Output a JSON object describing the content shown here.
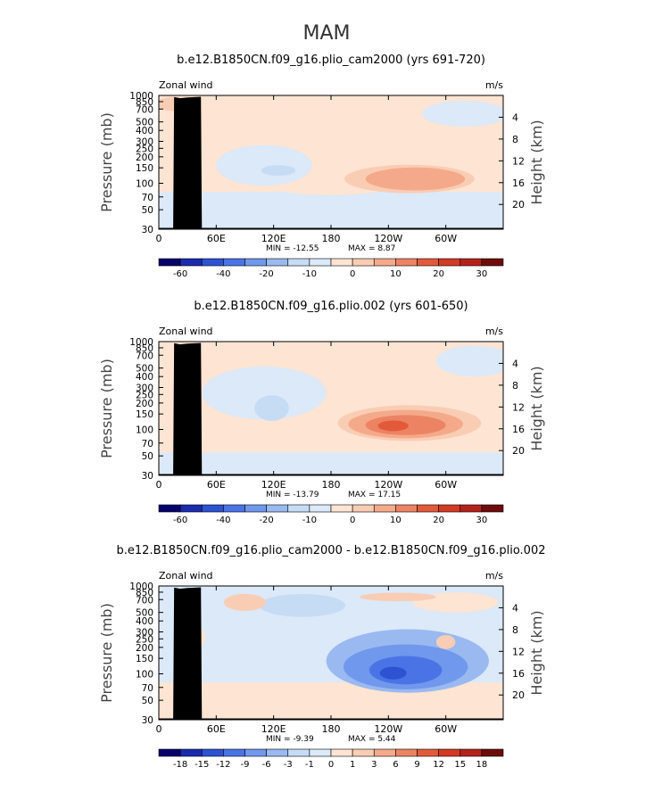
{
  "figure": {
    "title": "MAM",
    "lon_ticks": [
      "0",
      "60E",
      "120E",
      "180",
      "120W",
      "60W"
    ],
    "pressure_ticks": [
      "30",
      "50",
      "70",
      "100",
      "150",
      "200",
      "250",
      "300",
      "400",
      "500",
      "700",
      "850",
      "1000"
    ],
    "height_ticks": [
      "20",
      "16",
      "12",
      "8",
      "4"
    ],
    "ylabel_left": "Pressure (mb)",
    "ylabel_right": "Height (km)",
    "colors": {
      "blue_7": "#08006b",
      "blue_6": "#1a2bb0",
      "blue_5": "#2d52d2",
      "blue_4": "#4a74e6",
      "blue_3": "#7098ec",
      "blue_2": "#9ab9f0",
      "blue_1": "#c6dcf5",
      "blue_0": "#dbe9f8",
      "red_0": "#fde4d3",
      "red_1": "#f9cdb4",
      "red_2": "#f4aa8a",
      "red_3": "#ec8463",
      "red_4": "#e35a3a",
      "red_5": "#d33a24",
      "red_6": "#b4231b",
      "red_7": "#6e0c0c",
      "terrain": "#000000"
    }
  },
  "chart_data": [
    {
      "type": "heatmap",
      "title": "b.e12.B1850CN.f09_g16.plio_cam2000 (yrs 691-720)",
      "left_label": "Zonal wind",
      "units": "m/s",
      "variable": "Zonal wind",
      "xaxis": "Longitude (0 to 360)",
      "yaxis": "Pressure (mb), 1000 to 30, log scale",
      "min_text": "MIN = -12.55",
      "max_text": "MAX = 8.87",
      "min": -12.55,
      "max": 8.87,
      "colorbar_levels": [
        -70,
        -60,
        -50,
        -40,
        -30,
        -20,
        -15,
        -10,
        -5,
        0,
        5,
        10,
        15,
        20,
        25,
        30,
        35
      ],
      "colorbar_labels": [
        "-60",
        "-40",
        "-20",
        "-10",
        "0",
        "10",
        "20",
        "30"
      ],
      "features": [
        {
          "lon": 120,
          "p": 140,
          "value": -10,
          "desc": "easterly minimum over Indian Ocean / western Pacific"
        },
        {
          "lon": 260,
          "p": 110,
          "value": 8,
          "desc": "westerly maximum over eastern Pacific"
        },
        {
          "lon": 0,
          "p": 40,
          "value": -5,
          "desc": "stratospheric easterlies"
        }
      ]
    },
    {
      "type": "heatmap",
      "title": "b.e12.B1850CN.f09_g16.plio.002 (yrs 601-650)",
      "left_label": "Zonal wind",
      "units": "m/s",
      "variable": "Zonal wind",
      "xaxis": "Longitude (0 to 360)",
      "yaxis": "Pressure (mb), 1000 to 30, log scale",
      "min_text": "MIN = -13.79",
      "max_text": "MAX = 17.15",
      "min": -13.79,
      "max": 17.15,
      "colorbar_levels": [
        -70,
        -60,
        -50,
        -40,
        -30,
        -20,
        -15,
        -10,
        -5,
        0,
        5,
        10,
        15,
        20,
        25,
        30,
        35
      ],
      "colorbar_labels": [
        "-60",
        "-40",
        "-20",
        "-10",
        "0",
        "10",
        "20",
        "30"
      ],
      "features": [
        {
          "lon": 260,
          "p": 110,
          "value": 17,
          "desc": "strong westerly maximum over eastern Pacific"
        },
        {
          "lon": 120,
          "p": 110,
          "value": -6,
          "desc": "easterlies over Indian Ocean / western Pacific"
        },
        {
          "lon": 0,
          "p": 35,
          "value": -6,
          "desc": "stratospheric easterlies"
        }
      ]
    },
    {
      "type": "heatmap",
      "title": "b.e12.B1850CN.f09_g16.plio_cam2000 - b.e12.B1850CN.f09_g16.plio.002",
      "left_label": "Zonal wind",
      "units": "m/s",
      "variable": "Zonal wind difference",
      "xaxis": "Longitude (0 to 360)",
      "yaxis": "Pressure (mb), 1000 to 30, log scale",
      "min_text": "MIN = -9.39",
      "max_text": "MAX = 5.44",
      "min": -9.39,
      "max": 5.44,
      "colorbar_levels": [
        -21,
        -18,
        -15,
        -12,
        -9,
        -6,
        -3,
        -1,
        0,
        1,
        3,
        6,
        9,
        12,
        15,
        18,
        21
      ],
      "colorbar_labels": [
        "-18",
        "-15",
        "-12",
        "-9",
        "-6",
        "-3",
        "-1",
        "0",
        "1",
        "3",
        "6",
        "9",
        "12",
        "15",
        "18"
      ],
      "features": [
        {
          "lon": 258,
          "p": 105,
          "value": -9,
          "desc": "negative difference core over eastern Pacific"
        },
        {
          "lon": 150,
          "p": 600,
          "value": -4,
          "desc": "lower tropospheric negative difference"
        },
        {
          "lon": 60,
          "p": 45,
          "value": 2,
          "desc": "positive difference in upper levels"
        }
      ]
    }
  ]
}
